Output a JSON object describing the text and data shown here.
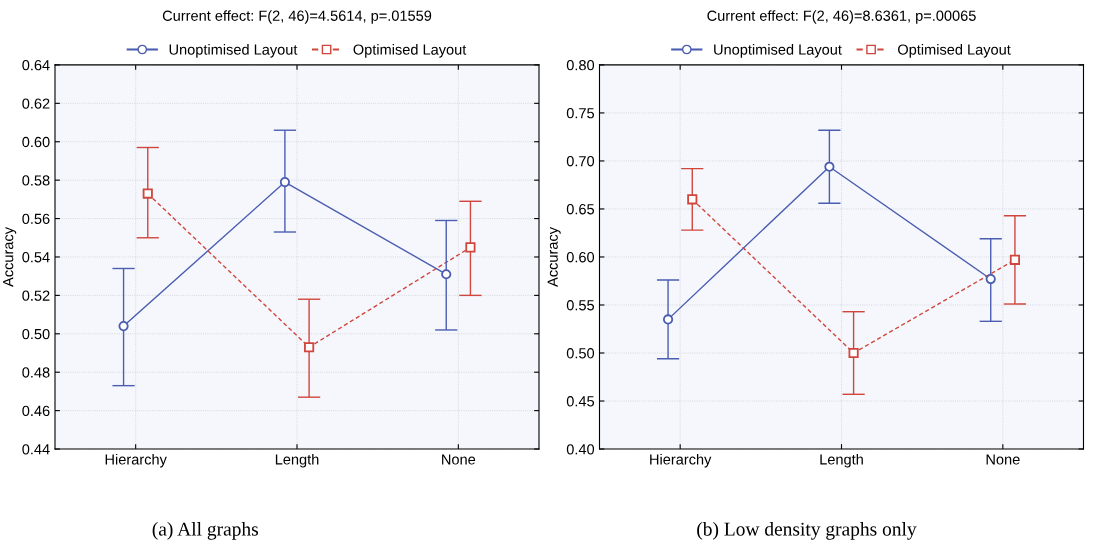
{
  "chart_data": [
    {
      "type": "line",
      "title": "Current effect: F(2, 46)=4.5614, p=.01559",
      "ylabel": "Accuracy",
      "categories": [
        "Hierarchy",
        "Length",
        "None"
      ],
      "ylim": [
        0.44,
        0.64
      ],
      "yticks": [
        {
          "value": 0.44,
          "label": "0.44"
        },
        {
          "value": 0.46,
          "label": "0.46"
        },
        {
          "value": 0.48,
          "label": "0.48"
        },
        {
          "value": 0.5,
          "label": "0.50"
        },
        {
          "value": 0.52,
          "label": "0.52"
        },
        {
          "value": 0.54,
          "label": "0.54"
        },
        {
          "value": 0.56,
          "label": "0.56"
        },
        {
          "value": 0.58,
          "label": "0.58"
        },
        {
          "value": 0.6,
          "label": "0.60"
        },
        {
          "value": 0.62,
          "label": "0.62"
        },
        {
          "value": 0.64,
          "label": "0.64"
        }
      ],
      "grid": true,
      "legend": "top",
      "annotations": [
        "(a) All graphs"
      ],
      "series": [
        {
          "name": "Unoptimised Layout",
          "color": "#4a5db0",
          "marker": "circle",
          "line_style": "solid",
          "values": [
            0.504,
            0.579,
            0.531
          ],
          "errors": [
            [
              0.473,
              0.534
            ],
            [
              0.553,
              0.606
            ],
            [
              0.502,
              0.559
            ]
          ]
        },
        {
          "name": "Optimised Layout",
          "color": "#d0463c",
          "marker": "square",
          "line_style": "dashed",
          "values": [
            0.573,
            0.493,
            0.545
          ],
          "errors": [
            [
              0.55,
              0.597
            ],
            [
              0.467,
              0.518
            ],
            [
              0.52,
              0.569
            ]
          ]
        }
      ]
    },
    {
      "type": "line",
      "title": "Current effect: F(2, 46)=8.6361, p=.00065",
      "ylabel": "Accuracy",
      "categories": [
        "Hierarchy",
        "Length",
        "None"
      ],
      "ylim": [
        0.4,
        0.8
      ],
      "yticks": [
        {
          "value": 0.4,
          "label": "0.40"
        },
        {
          "value": 0.45,
          "label": "0.45"
        },
        {
          "value": 0.5,
          "label": "0.50"
        },
        {
          "value": 0.55,
          "label": "0.55"
        },
        {
          "value": 0.6,
          "label": "0.60"
        },
        {
          "value": 0.65,
          "label": "0.65"
        },
        {
          "value": 0.7,
          "label": "0.70"
        },
        {
          "value": 0.75,
          "label": "0.75"
        },
        {
          "value": 0.8,
          "label": "0.80"
        }
      ],
      "grid": true,
      "legend": "top",
      "annotations": [
        "(b) Low density graphs only"
      ],
      "series": [
        {
          "name": "Unoptimised Layout",
          "color": "#4a5db0",
          "marker": "circle",
          "line_style": "solid",
          "values": [
            0.535,
            0.694,
            0.577
          ],
          "errors": [
            [
              0.494,
              0.576
            ],
            [
              0.656,
              0.732
            ],
            [
              0.533,
              0.619
            ]
          ]
        },
        {
          "name": "Optimised Layout",
          "color": "#d0463c",
          "marker": "square",
          "line_style": "dashed",
          "values": [
            0.66,
            0.5,
            0.597
          ],
          "errors": [
            [
              0.628,
              0.692
            ],
            [
              0.457,
              0.543
            ],
            [
              0.551,
              0.643
            ]
          ]
        }
      ]
    }
  ]
}
